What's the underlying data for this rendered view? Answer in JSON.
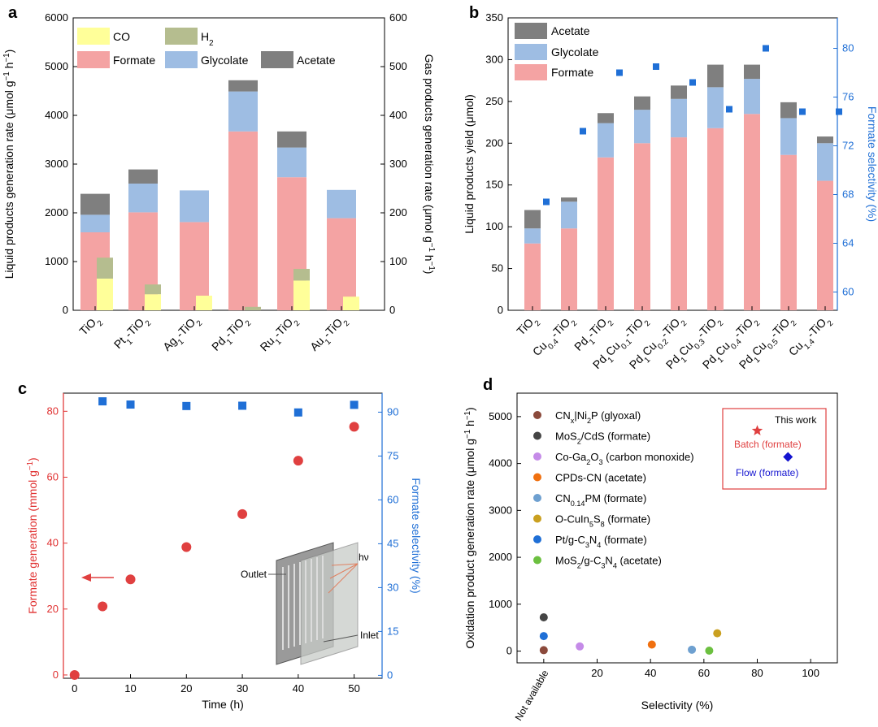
{
  "colors": {
    "co": "#ffff99",
    "h2": "#b5bd8f",
    "formate": "#f4a3a3",
    "glycolate": "#9ebde3",
    "acetate": "#7f7f7f",
    "blue_marker": "#1f6fd6",
    "red_marker": "#e04040",
    "red_axis": "#e03030"
  },
  "chart_data": [
    {
      "panel": "a",
      "type": "bar",
      "ylabel": "Liquid products generation rate (μmol g⁻¹ h⁻¹)",
      "y2label": "Gas products generation rate (μmol g⁻¹ h⁻¹)",
      "ylim": [
        0,
        6000
      ],
      "y2lim": [
        0,
        600
      ],
      "y_ticks": [
        "0",
        "1000",
        "2000",
        "3000",
        "4000",
        "5000",
        "6000"
      ],
      "y2_ticks": [
        "0",
        "100",
        "200",
        "300",
        "400",
        "500",
        "600"
      ],
      "categories": [
        {
          "pre": "TiO",
          "sub": "2",
          "post": ""
        },
        {
          "pre": "Pt",
          "sub": "1",
          "post": "-TiO",
          "sub2": "2"
        },
        {
          "pre": "Ag",
          "sub": "1",
          "post": "-TiO",
          "sub2": "2"
        },
        {
          "pre": "Pd",
          "sub": "1",
          "post": "-TiO",
          "sub2": "2"
        },
        {
          "pre": "Ru",
          "sub": "1",
          "post": "-TiO",
          "sub2": "2"
        },
        {
          "pre": "Au",
          "sub": "1",
          "post": "-TiO",
          "sub2": "2"
        }
      ],
      "liquid_series": [
        {
          "name": "Formate",
          "values": [
            1600,
            2010,
            1810,
            3670,
            2730,
            1890
          ]
        },
        {
          "name": "Glycolate",
          "values": [
            360,
            590,
            650,
            820,
            610,
            580
          ]
        },
        {
          "name": "Acetate",
          "values": [
            430,
            290,
            0,
            230,
            330,
            0
          ]
        }
      ],
      "gas_series": [
        {
          "name": "CO",
          "values": [
            65,
            33,
            30,
            0,
            61,
            28
          ]
        },
        {
          "name": "H2",
          "values": [
            43,
            20,
            0,
            7,
            24,
            0
          ]
        }
      ],
      "legend": [
        "CO",
        "H2",
        "Formate",
        "Glycolate",
        "Acetate"
      ]
    },
    {
      "panel": "b",
      "type": "bar",
      "ylabel": "Liquid products yield (μmol)",
      "y2label": "Formate selectivity (%)",
      "ylim": [
        0,
        350
      ],
      "y2lim": [
        58.5,
        82.5
      ],
      "y_ticks": [
        "0",
        "50",
        "100",
        "150",
        "200",
        "250",
        "300",
        "350"
      ],
      "y2_ticks": [
        "60",
        "64",
        "68",
        "72",
        "76",
        "80"
      ],
      "categories": [
        "TiO2",
        "Cu0.4-TiO2",
        "Pd1-TiO2",
        "Pd1Cu0.1-TiO2",
        "Pd1Cu0.2-TiO2",
        "Pd1Cu0.3-TiO2",
        "Pd1Cu0.4-TiO2",
        "Pd1Cu0.5-TiO2",
        "Cu1.4-TiO2"
      ],
      "series": [
        {
          "name": "Formate",
          "values": [
            80,
            98,
            183,
            200,
            207,
            218,
            235,
            186,
            155
          ]
        },
        {
          "name": "Glycolate",
          "values": [
            18,
            32,
            41,
            40,
            46,
            49,
            42,
            44,
            45
          ]
        },
        {
          "name": "Acetate",
          "values": [
            22,
            5,
            12,
            16,
            16,
            27,
            17,
            19,
            8
          ]
        }
      ],
      "selectivity": [
        67.4,
        73.2,
        78.0,
        78.5,
        77.2,
        75.0,
        80.0,
        74.8,
        74.8
      ],
      "legend": [
        "Acetate",
        "Glycolate",
        "Formate"
      ]
    },
    {
      "panel": "c",
      "type": "scatter",
      "xlabel": "Time (h)",
      "ylabel": "Formate generation (mmol g⁻¹)",
      "y2label": "Formate selectivity (%)",
      "xlim": [
        -2,
        55
      ],
      "ylim": [
        -1,
        85.5
      ],
      "y2lim": [
        -1,
        96.5
      ],
      "x_ticks": [
        "0",
        "10",
        "20",
        "30",
        "40",
        "50"
      ],
      "y_ticks": [
        "0",
        "20",
        "40",
        "60",
        "80"
      ],
      "y2_ticks": [
        "0",
        "15",
        "30",
        "45",
        "60",
        "75",
        "90"
      ],
      "formate_generation": {
        "x": [
          0,
          5,
          10,
          20,
          30,
          40,
          50
        ],
        "y": [
          0,
          20.8,
          29,
          38.8,
          48.8,
          65,
          75.3
        ]
      },
      "formate_selectivity": {
        "x": [
          5,
          10,
          20,
          30,
          40,
          50
        ],
        "y": [
          93.7,
          92.6,
          92.1,
          92.2,
          89.9,
          92.5
        ]
      },
      "inset_labels": {
        "outlet": "Outlet",
        "inlet": "Inlet",
        "light": "hν"
      }
    },
    {
      "panel": "d",
      "type": "scatter",
      "xlabel": "Selectivity (%)",
      "ylabel": "Oxidation product generation rate (μmol g⁻¹ h⁻¹)",
      "xlim": [
        -10,
        110
      ],
      "ylim": [
        -250,
        5500
      ],
      "x_ticks": [
        "20",
        "40",
        "60",
        "80",
        "100"
      ],
      "x_special": "Not available",
      "y_ticks": [
        "0",
        "1000",
        "2000",
        "3000",
        "4000",
        "5000"
      ],
      "points": [
        {
          "label": "CNx|Ni2P (glyoxal)",
          "color": "#8b4a3c",
          "x": 0,
          "y": 20
        },
        {
          "label": "MoS2/CdS (formate)",
          "color": "#454545",
          "x": 0,
          "y": 720
        },
        {
          "label": "Co-Ga2O3 (carbon monoxide)",
          "color": "#c58be8",
          "x": 13.5,
          "y": 100
        },
        {
          "label": "CPDs-CN (acetate)",
          "color": "#f07010",
          "x": 40.5,
          "y": 140
        },
        {
          "label": "CN0.14PM (formate)",
          "color": "#6ea0d0",
          "x": 55.5,
          "y": 30
        },
        {
          "label": "O-CuIn5S8 (formate)",
          "color": "#caa020",
          "x": 65,
          "y": 380
        },
        {
          "label": "Pt/g-C3N4 (formate)",
          "color": "#1f6fd6",
          "x": 0,
          "y": 320
        },
        {
          "label": "MoS2/g-C3N4 (acetate)",
          "color": "#6cc040",
          "x": 62,
          "y": 10
        }
      ],
      "this_work": {
        "title": "This work",
        "batch": {
          "label": "Batch (formate)",
          "x": 80,
          "y": 4700,
          "color": "#e04040"
        },
        "flow": {
          "label": "Flow (formate)",
          "x": 91.5,
          "y": 4140,
          "color": "#1414d0"
        }
      }
    }
  ]
}
